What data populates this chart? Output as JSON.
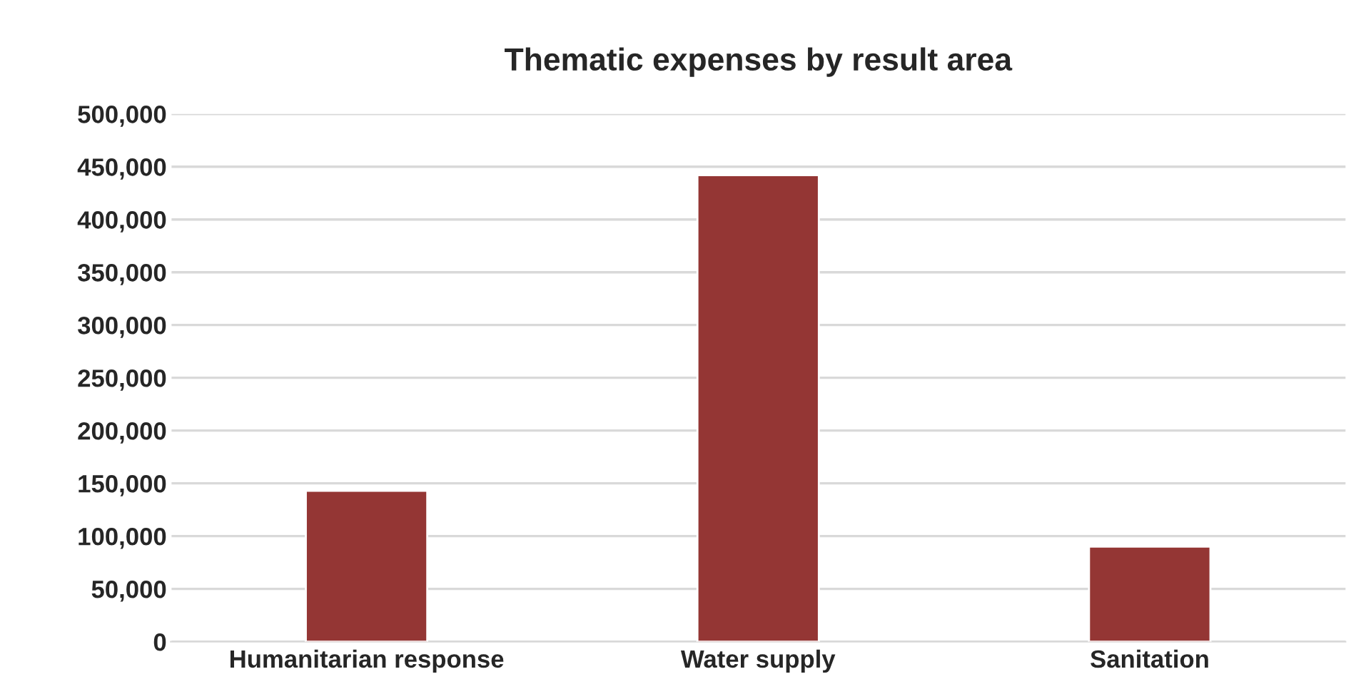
{
  "chart_data": {
    "type": "bar",
    "title": "Thematic expenses by result area",
    "categories": [
      "Humanitarian response",
      "Water supply",
      "Sanitation"
    ],
    "values": [
      143000,
      442000,
      90000
    ],
    "color": "#943634",
    "ylim": [
      0,
      500000
    ],
    "yticks": [
      {
        "value": 0,
        "label": "0"
      },
      {
        "value": 50000,
        "label": "50,000"
      },
      {
        "value": 100000,
        "label": "100,000"
      },
      {
        "value": 150000,
        "label": "150,000"
      },
      {
        "value": 200000,
        "label": "200,000"
      },
      {
        "value": 250000,
        "label": "250,000"
      },
      {
        "value": 300000,
        "label": "300,000"
      },
      {
        "value": 350000,
        "label": "350,000"
      },
      {
        "value": 400000,
        "label": "400,000"
      },
      {
        "value": 450000,
        "label": "450,000"
      },
      {
        "value": 500000,
        "label": "500,000"
      }
    ],
    "grid": "y"
  }
}
